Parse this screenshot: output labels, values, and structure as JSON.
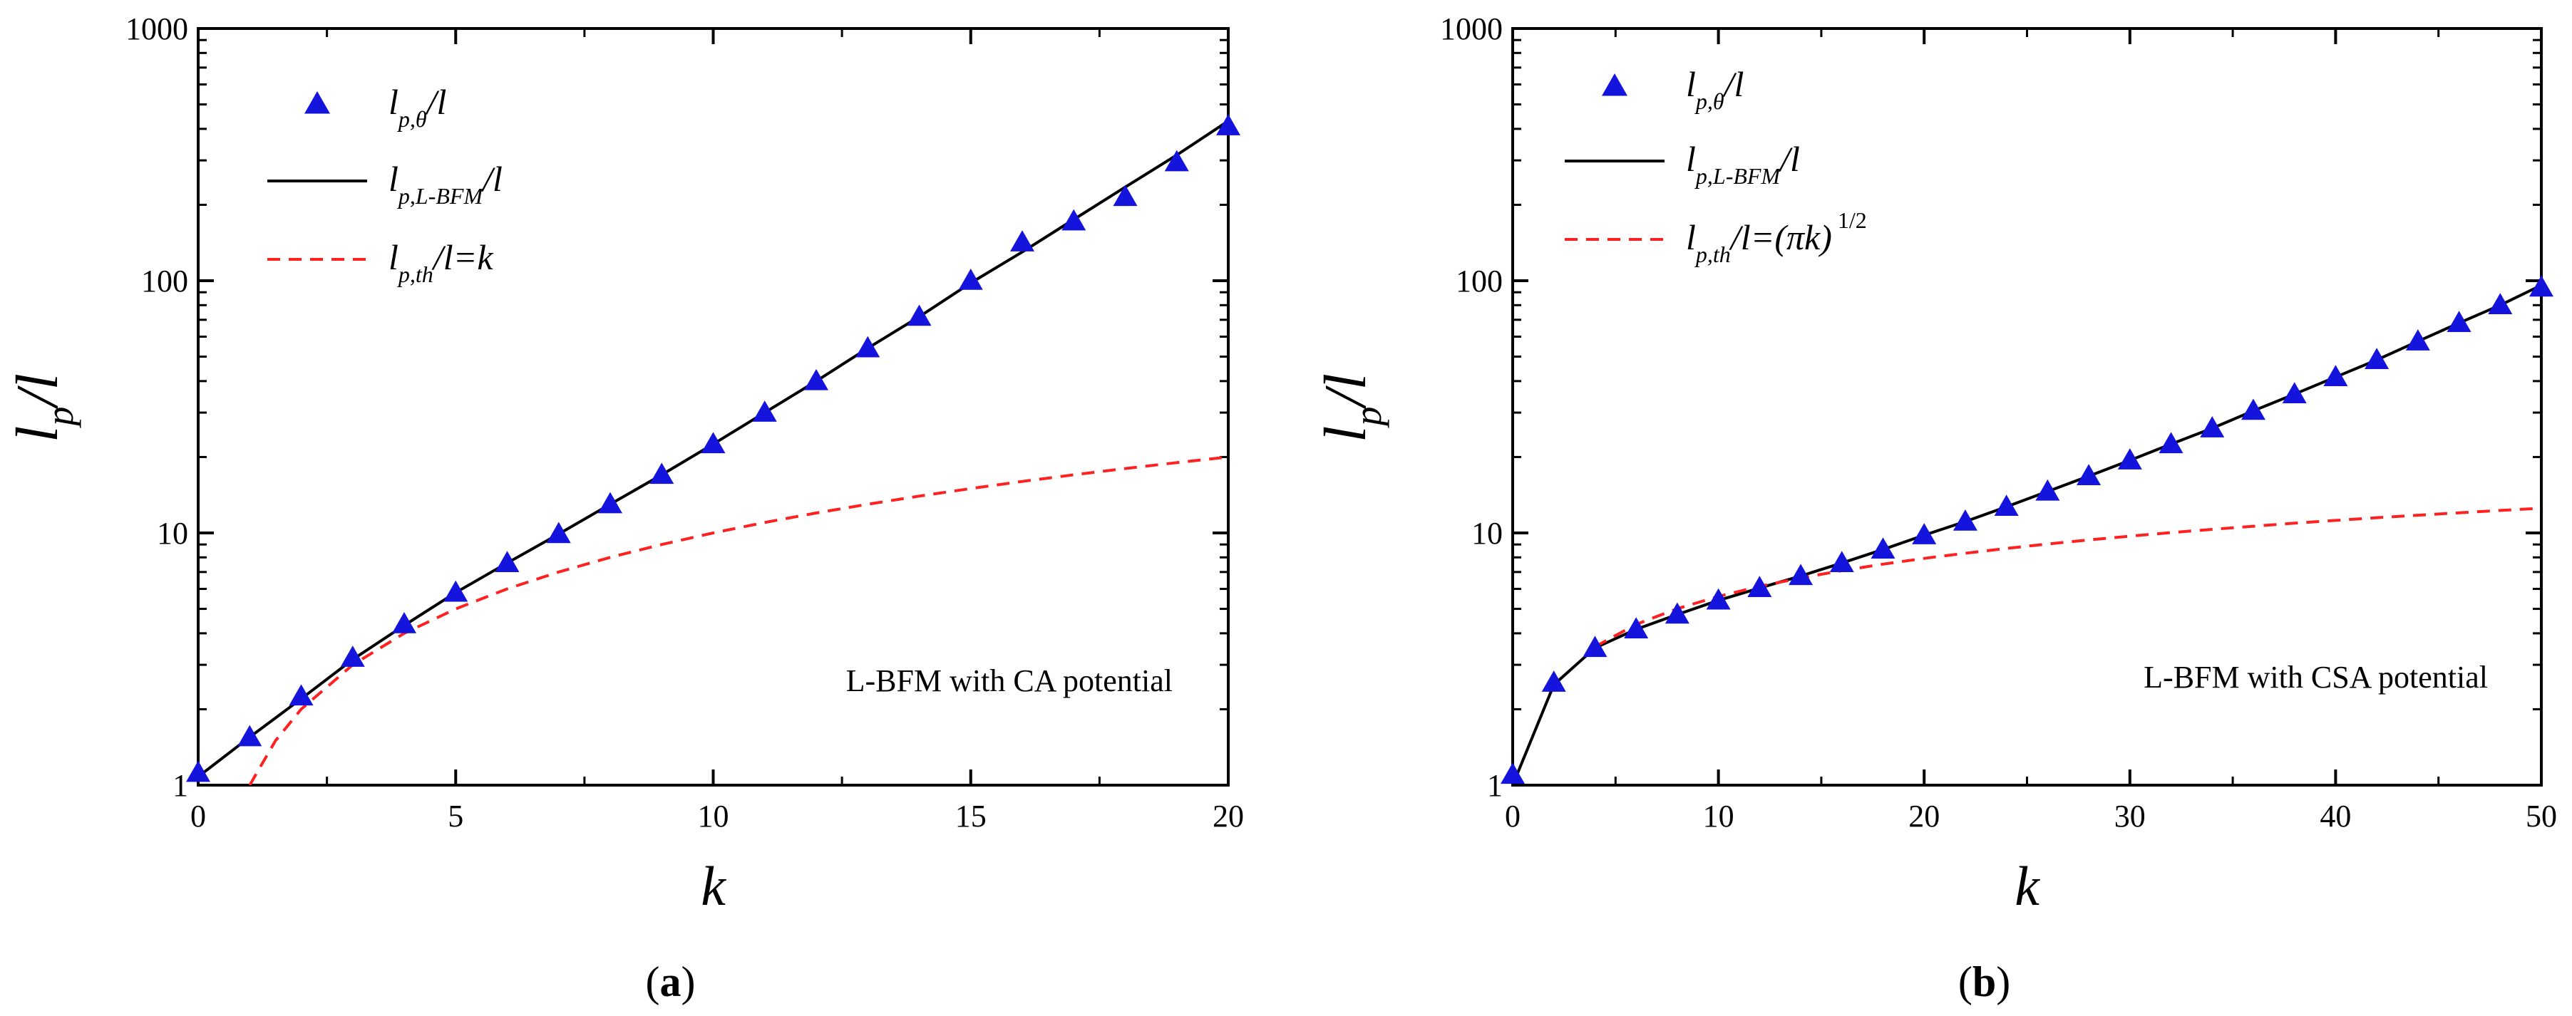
{
  "colors": {
    "markers": "#1414dc",
    "fit": "#000000",
    "theory": "#ff2020"
  },
  "chart_data": [
    {
      "type": "scatter",
      "panel_label": "(a)",
      "xlabel": "k",
      "ylabel_main": "l",
      "ylabel_sub": "p",
      "ylabel_tail": "/l",
      "xlim": [
        0,
        20
      ],
      "ylim": [
        1,
        1000
      ],
      "yscale": "log",
      "xticks": [
        0,
        5,
        10,
        15,
        20
      ],
      "yticks": [
        1,
        10,
        100,
        1000
      ],
      "legend_placement": "top-left",
      "annotation": "L-BFM with CA potential",
      "legend": {
        "marker": {
          "main": "l",
          "sub": "p,θ",
          "tail": "/l",
          "sup": ""
        },
        "fit": {
          "main": "l",
          "sub": "p,L-BFM",
          "tail": "/l",
          "sup": ""
        },
        "theory": {
          "main": "l",
          "sub": "p,th",
          "tail": "/l=k",
          "sup": ""
        }
      },
      "series": [
        {
          "name": "l_p,θ/l",
          "style": "marker",
          "x": [
            0,
            1,
            2,
            3,
            4,
            5,
            6,
            7,
            8,
            9,
            10,
            11,
            12,
            13,
            14,
            15,
            16,
            17,
            18,
            19,
            20
          ],
          "y": [
            1.12,
            1.55,
            2.25,
            3.2,
            4.35,
            5.8,
            7.6,
            9.9,
            13.0,
            17.0,
            22.5,
            30.0,
            40.0,
            54.0,
            72.0,
            100.0,
            142.0,
            172.0,
            215.0,
            295.0,
            410.0
          ]
        },
        {
          "name": "l_p,L-BFM/l",
          "style": "solid",
          "x": [
            0,
            1,
            2,
            3,
            4,
            5,
            6,
            7,
            8,
            9,
            10,
            11,
            12,
            13,
            14,
            15,
            16,
            17,
            18,
            19,
            20
          ],
          "y": [
            1.08,
            1.55,
            2.2,
            3.15,
            4.3,
            5.8,
            7.6,
            9.9,
            13.0,
            17.0,
            22.5,
            30.0,
            40.0,
            54.0,
            72.0,
            98.0,
            130.0,
            175.0,
            235.0,
            315.0,
            430.0
          ]
        },
        {
          "name": "l_p,th/l=k",
          "style": "dashed",
          "x": [
            1,
            1.5,
            2,
            3,
            4,
            5,
            6,
            7,
            8,
            9,
            10,
            11,
            12,
            13,
            14,
            15,
            16,
            17,
            18,
            19,
            20
          ],
          "y": [
            1,
            1.5,
            2,
            3,
            4,
            5,
            6,
            7,
            8,
            9,
            10,
            11,
            12,
            13,
            14,
            15,
            16,
            17,
            18,
            19,
            20
          ]
        }
      ]
    },
    {
      "type": "scatter",
      "panel_label": "(b)",
      "xlabel": "k",
      "ylabel_main": "l",
      "ylabel_sub": "p",
      "ylabel_tail": "/l",
      "xlim": [
        0,
        50
      ],
      "ylim": [
        1,
        1000
      ],
      "yscale": "log",
      "xticks": [
        0,
        10,
        20,
        30,
        40,
        50
      ],
      "yticks": [
        1,
        10,
        100,
        1000
      ],
      "legend_placement": "top-left",
      "annotation": "L-BFM with CSA potential",
      "legend": {
        "marker": {
          "main": "l",
          "sub": "p,θ",
          "tail": "/l",
          "sup": ""
        },
        "fit": {
          "main": "l",
          "sub": "p,L-BFM",
          "tail": "/l",
          "sup": ""
        },
        "theory": {
          "main": "l",
          "sub": "p,th",
          "tail": "/l=(πk)",
          "sup": "1/2"
        }
      },
      "series": [
        {
          "name": "l_p,θ/l",
          "style": "marker",
          "x": [
            0,
            2,
            4,
            6,
            8,
            10,
            12,
            14,
            16,
            18,
            20,
            22,
            24,
            26,
            28,
            30,
            32,
            34,
            36,
            38,
            40,
            42,
            44,
            46,
            48,
            50
          ],
          "y": [
            1.1,
            2.55,
            3.5,
            4.15,
            4.75,
            5.4,
            6.05,
            6.75,
            7.6,
            8.6,
            9.8,
            11.1,
            12.7,
            14.6,
            16.8,
            19.4,
            22.5,
            26.0,
            30.5,
            35.5,
            41.5,
            48.5,
            57.5,
            68.0,
            80.0,
            94.0
          ]
        },
        {
          "name": "l_p,L-BFM/l",
          "style": "solid",
          "x": [
            0,
            2,
            4,
            6,
            8,
            10,
            12,
            14,
            16,
            18,
            20,
            22,
            24,
            26,
            28,
            30,
            32,
            34,
            36,
            38,
            40,
            42,
            44,
            46,
            48,
            50
          ],
          "y": [
            1.0,
            2.5,
            3.5,
            4.15,
            4.75,
            5.4,
            6.05,
            6.75,
            7.6,
            8.6,
            9.8,
            11.1,
            12.7,
            14.6,
            16.8,
            19.4,
            22.5,
            26.0,
            30.5,
            35.5,
            41.5,
            48.5,
            57.5,
            68.0,
            80.0,
            96.0
          ]
        },
        {
          "name": "l_p,th/l=(πk)^1/2",
          "style": "dashed",
          "x": [
            4,
            6,
            8,
            10,
            12,
            14,
            16,
            18,
            20,
            22,
            24,
            26,
            28,
            30,
            32,
            34,
            36,
            38,
            40,
            42,
            44,
            46,
            48,
            50
          ],
          "y": [
            3.54,
            4.34,
            5.01,
            5.6,
            6.14,
            6.63,
            7.09,
            7.52,
            7.93,
            8.31,
            8.68,
            9.04,
            9.38,
            9.71,
            10.03,
            10.33,
            10.63,
            10.93,
            11.21,
            11.49,
            11.76,
            12.02,
            12.28,
            12.53
          ]
        }
      ]
    }
  ]
}
